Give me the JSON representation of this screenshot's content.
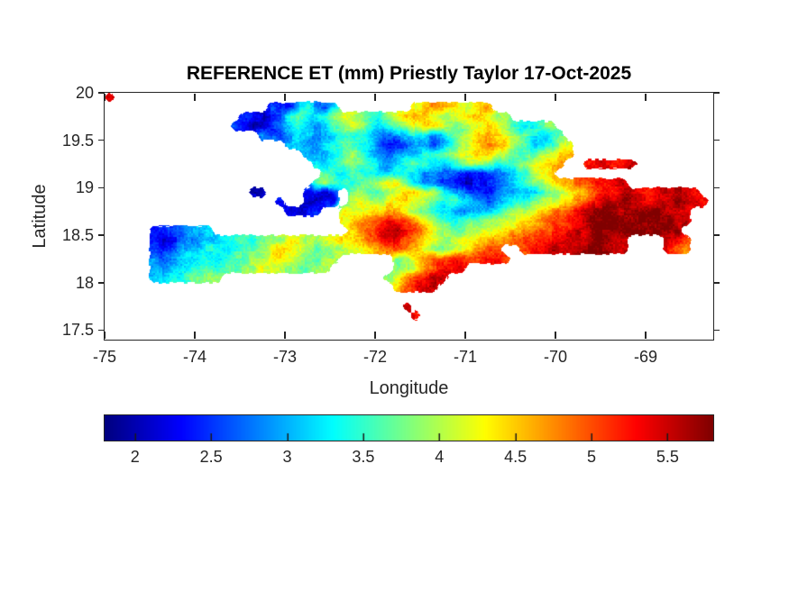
{
  "title": {
    "text": "REFERENCE ET (mm) Priestly Taylor 17-Oct-2025"
  },
  "axes": {
    "xlabel": "Longitude",
    "ylabel": "Latitude",
    "xlim": [
      -75,
      -68.25
    ],
    "ylim": [
      17.4,
      20
    ],
    "xticks": [
      -75,
      -74,
      -73,
      -72,
      -71,
      -70,
      -69
    ],
    "xtick_labels": [
      "-75",
      "-74",
      "-73",
      "-72",
      "-71",
      "-70",
      "-69"
    ],
    "yticks": [
      20,
      19.5,
      19,
      18.5,
      18,
      17.5
    ],
    "ytick_labels": [
      "20",
      "19.5",
      "19",
      "18.5",
      "18",
      "17.5"
    ]
  },
  "colorbar": {
    "orientation": "horizontal",
    "colormap": "jet",
    "vmin": 1.8,
    "vmax": 5.8,
    "ticks": [
      2,
      2.5,
      3,
      3.5,
      4,
      4.5,
      5,
      5.5
    ],
    "tick_labels": [
      "2",
      "2.5",
      "3",
      "3.5",
      "4",
      "4.5",
      "5",
      "5.5"
    ]
  },
  "colors": {
    "text": "#262626",
    "axis": "#262626",
    "background": "#ffffff",
    "title": "#000000"
  },
  "chart_data": {
    "type": "heatmap",
    "title": "REFERENCE ET (mm) Priestly Taylor 17-Oct-2025",
    "xlabel": "Longitude",
    "ylabel": "Latitude",
    "units": "mm",
    "region": "Hispaniola (Haiti / Dominican Republic)",
    "colormap": "jet",
    "value_range": [
      1.8,
      5.8
    ],
    "grid": {
      "lon_min": -75.0,
      "lon_step": 0.1,
      "lat_max": 20.0,
      "lat_step": 0.1,
      "no_data_char": ".",
      "encoding": "hex level 0-15; value_mm = 1.8 + level/15 * 4.0",
      "rows": [
        "e.....................................................................",
        "..................32256435........9abba99ab...........................",
        "...............221236765689987689aba9889aa988.........................",
        "..............321124565457898656789aa98789a9865678....................",
        ".................433455445666543456545789aba9876567...................",
        "....................554456776532234434689abba8755689..................",
        "......................5456787543455667899aa9876789aa..................",
        ".......................65678765456765567887667 89aab..ddedde...........",
        "........................7667665566544332223345689a....................",
        ".......................78766789a975443211223456789abccddde............",
        "................11....2212.887789aa98654332344556789abcddeeddeeeed....",
        "...................2..1122.99889aa98767654345667899abcdeefeedeefeed...",
        "....................2122..a99aaba98765544556788 9abccdefffeefffeed....",
        "..........................9abbcddcb98766778899aabccddefffffffffee....",
        ".....2233455...............abcdeedcb98778899aabbccddeeffffffffff.....",
        ".....212344556676788998899aabcdedcba98899aabbcccdddeeeffee....edc.....",
        ".....32345566567789aa98778899abccba98789abcc..cddeeeefffee....dcb.....",
        ".....43455665677889a987788......78abccddccddc.........................",
        ".....44556676778899887788.......789bcdde.............................ed",
        ".....5566778 8..................89bcdee...............................",
        "................................acdee.................................",
        "......................................................................",
        ".................................e....................................",
        "..................................d...................................",
        "......................................................................"
      ]
    }
  }
}
